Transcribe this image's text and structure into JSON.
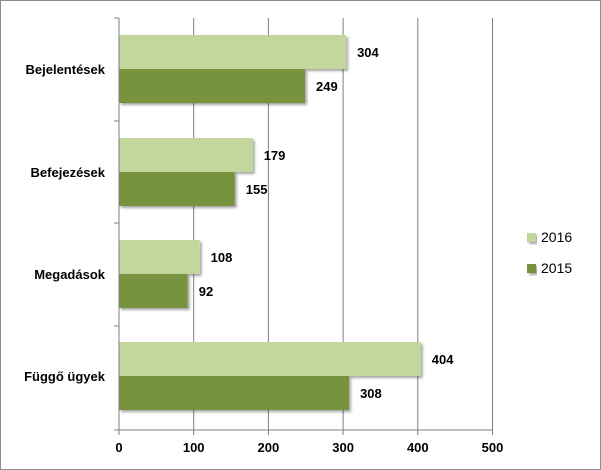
{
  "chart_data": {
    "type": "bar",
    "orientation": "horizontal",
    "categories": [
      "Bejelentések",
      "Befejezések",
      "Megadások",
      "Függő ügyek"
    ],
    "series": [
      {
        "name": "2016",
        "values": [
          304,
          179,
          108,
          404
        ],
        "color": "#c3d69b"
      },
      {
        "name": "2015",
        "values": [
          249,
          155,
          92,
          308
        ],
        "color": "#77933c"
      }
    ],
    "xlim": [
      0,
      500
    ],
    "xticks": [
      0,
      100,
      200,
      300,
      400,
      500
    ],
    "grid": true,
    "legend_position": "right",
    "data_labels": true
  }
}
